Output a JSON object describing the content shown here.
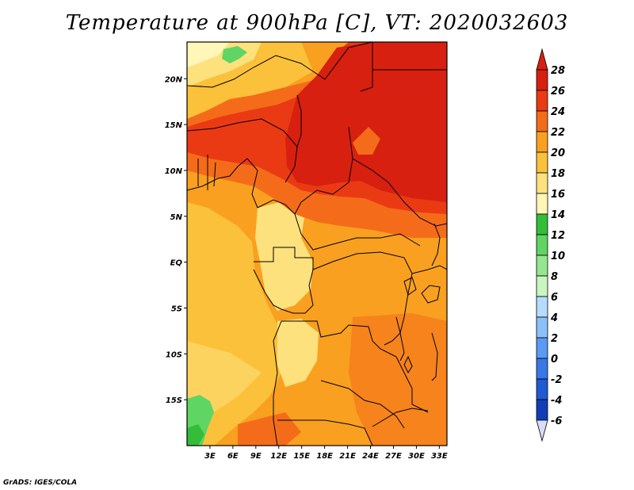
{
  "title": "Temperature at 900hPa [C], VT: 2020032603",
  "credit": "GrADS: IGES/COLA",
  "map": {
    "lon_range": [
      0,
      34
    ],
    "lat_range": [
      -20,
      24
    ],
    "lon_ticks": [
      "3E",
      "6E",
      "9E",
      "12E",
      "15E",
      "18E",
      "21E",
      "24E",
      "27E",
      "30E",
      "33E"
    ],
    "lon_tick_values": [
      3,
      6,
      9,
      12,
      15,
      18,
      21,
      24,
      27,
      30,
      33
    ],
    "lat_ticks": [
      "20N",
      "15N",
      "10N",
      "5N",
      "EQ",
      "5S",
      "10S",
      "15S"
    ],
    "lat_tick_values": [
      20,
      15,
      10,
      5,
      0,
      -5,
      -10,
      -15
    ]
  },
  "colorbar": {
    "labels": [
      "28",
      "26",
      "24",
      "22",
      "20",
      "18",
      "16",
      "14",
      "12",
      "10",
      "8",
      "6",
      "4",
      "2",
      "0",
      "-2",
      "-4",
      "-6"
    ],
    "colors": [
      "#d7200f",
      "#ea3a14",
      "#f46c19",
      "#f9a020",
      "#fbc13a",
      "#fde17d",
      "#fff6b8",
      "#33bd38",
      "#5fd564",
      "#96e590",
      "#c8f5c0",
      "#b5dcff",
      "#8dc0fb",
      "#5a9af2",
      "#3877e6",
      "#1f5ad3",
      "#123db8",
      "#0c1f8d",
      "#081257"
    ],
    "top_cap_color": "#d7200f",
    "bottom_cap_color": "#d8dcf7"
  }
}
